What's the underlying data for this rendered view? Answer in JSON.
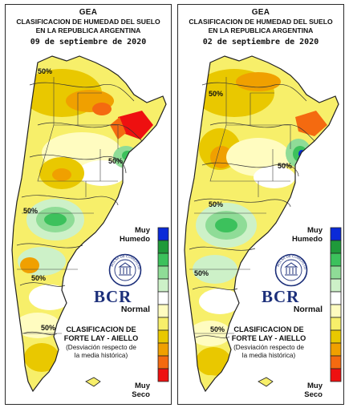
{
  "panels": [
    {
      "title": "GEA",
      "subtitle1": "CLASIFICACION DE HUMEDAD DEL SUELO",
      "subtitle2": "EN LA REPUBLICA ARGENTINA",
      "date": "09 de septiembre de 2020",
      "contour_labels": [
        "50%",
        "50%",
        "50%",
        "50%",
        "50%"
      ]
    },
    {
      "title": "GEA",
      "subtitle1": "CLASIFICACION DE HUMEDAD DEL SUELO",
      "subtitle2": "EN LA REPUBLICA ARGENTINA",
      "date": "02 de septiembre de 2020",
      "contour_labels": [
        "50%",
        "50%",
        "50%",
        "50%",
        "50%"
      ]
    }
  ],
  "legend": {
    "label_muy_humedo": "Muy\nHumedo",
    "label_normal": "Normal",
    "label_muy_seco": "Muy\nSeco",
    "colors": [
      "#0a2ad8",
      "#1f9a3a",
      "#3cc15c",
      "#8fdc97",
      "#cdf1c8",
      "#ffffff",
      "#fffcc0",
      "#f7ef6a",
      "#e9c800",
      "#f0a000",
      "#f46a10",
      "#ee1010"
    ]
  },
  "classification": {
    "title_line1": "CLASIFICACION DE",
    "title_line2": "FORTE LAY - AIELLO",
    "sub_line1": "(Desviación respecto de",
    "sub_line2": "la media histórica)"
  },
  "logo": {
    "text": "BCR",
    "seal_text": "BOLSA DE COMERCIO DE ROSARIO"
  }
}
